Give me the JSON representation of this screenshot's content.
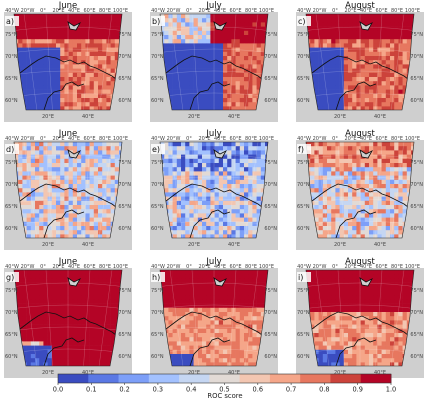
{
  "colorbar": {
    "label": "ROC score",
    "ticks": [
      "0.0",
      "0.1",
      "0.2",
      "0.3",
      "0.4",
      "0.5",
      "0.6",
      "0.7",
      "0.8",
      "0.9",
      "1.0"
    ],
    "colors": [
      "#3a4cc0",
      "#5a78e4",
      "#7d9ff8",
      "#a3c1fe",
      "#c5d6f2",
      "#e2dad5",
      "#f3c6b1",
      "#f5a689",
      "#e7775f",
      "#cc433b",
      "#b40426"
    ]
  },
  "map_ticks": {
    "lon_top": [
      "40°W",
      "20°W",
      "0°",
      "20°E",
      "40°E",
      "60°E",
      "80°E",
      "100°E"
    ],
    "lon_bottom": [
      "20°E",
      "40°E"
    ],
    "lat": [
      "75°N",
      "70°N",
      "65°N",
      "60°N"
    ]
  },
  "panels": [
    {
      "letter": "a)",
      "month": "June",
      "pattern": "a"
    },
    {
      "letter": "b)",
      "month": "July",
      "pattern": "b"
    },
    {
      "letter": "c)",
      "month": "August",
      "pattern": "c"
    },
    {
      "letter": "d)",
      "month": "June",
      "pattern": "d"
    },
    {
      "letter": "e)",
      "month": "July",
      "pattern": "e"
    },
    {
      "letter": "f)",
      "month": "August",
      "pattern": "f"
    },
    {
      "letter": "g)",
      "month": "June",
      "pattern": "g"
    },
    {
      "letter": "h)",
      "month": "July",
      "pattern": "h"
    },
    {
      "letter": "i)",
      "month": "August",
      "pattern": "i"
    }
  ]
}
